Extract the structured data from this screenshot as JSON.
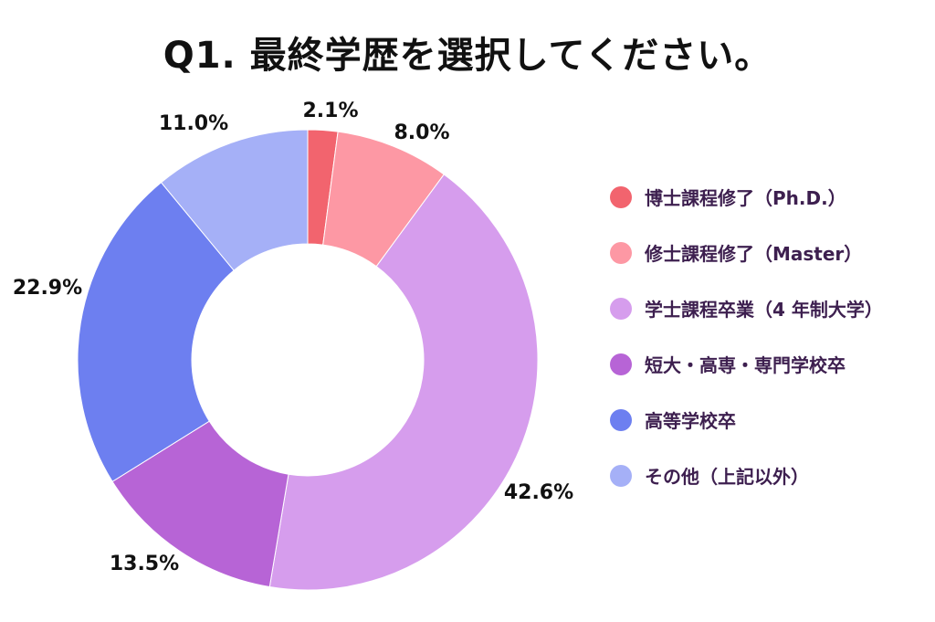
{
  "chart_data": {
    "type": "pie",
    "title": "Q1. 最終学歴を選択してください。",
    "categories": [
      "博士課程修了（Ph.D.）",
      "修士課程修了（Master）",
      "学士課程卒業（4 年制大学）",
      "短大・高専・専門学校卒",
      "高等学校卒",
      "その他（上記以外）"
    ],
    "values": [
      2.1,
      8.0,
      42.6,
      13.5,
      22.9,
      11.0
    ],
    "value_labels": [
      "2.1%",
      "8.0%",
      "42.6%",
      "13.5%",
      "22.9%",
      "11.0%"
    ],
    "colors": [
      "#f2646e",
      "#fd98a4",
      "#d69ded",
      "#b764d6",
      "#6d7ff0",
      "#a5b0f7"
    ],
    "legend_position": "right",
    "donut": true
  }
}
